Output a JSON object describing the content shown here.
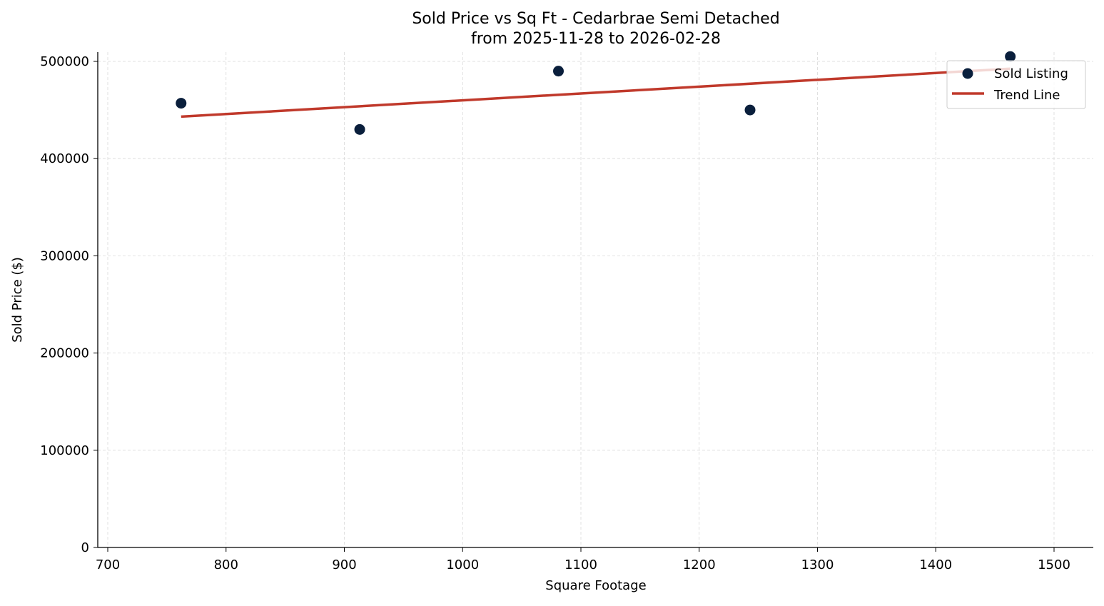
{
  "chart_data": {
    "type": "scatter",
    "title": "Sold Price vs Sq Ft - Cedarbrae Semi Detached",
    "subtitle": "from 2025-11-28 to 2026-02-28",
    "xlabel": "Square Footage",
    "ylabel": "Sold Price ($)",
    "xlim": [
      691,
      1532
    ],
    "ylim": [
      0,
      510000
    ],
    "x_ticks": [
      700,
      800,
      900,
      1000,
      1100,
      1200,
      1300,
      1400,
      1500
    ],
    "y_ticks": [
      0,
      100000,
      200000,
      300000,
      400000,
      500000
    ],
    "grid": true,
    "legend_position": "top-right",
    "series": [
      {
        "name": "Sold Listing",
        "kind": "scatter",
        "color": "#0a1f3c",
        "x": [
          762,
          913,
          1081,
          1243,
          1463
        ],
        "y": [
          457000,
          430000,
          490000,
          450000,
          505000
        ]
      },
      {
        "name": "Trend Line",
        "kind": "line",
        "color": "#c0392b",
        "x": [
          762,
          1463
        ],
        "y": [
          443200,
          492500
        ]
      }
    ]
  }
}
